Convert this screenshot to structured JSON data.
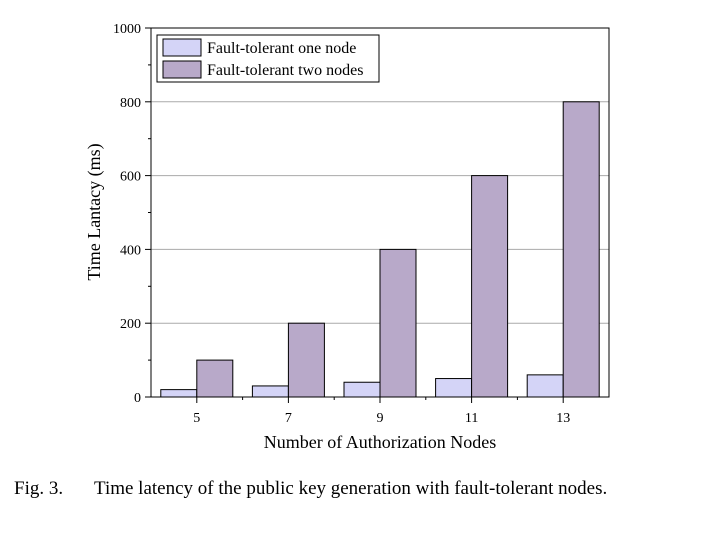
{
  "chart_data": {
    "type": "bar",
    "categories": [
      "5",
      "7",
      "9",
      "11",
      "13"
    ],
    "series": [
      {
        "name": "Fault-tolerant one node",
        "values": [
          20,
          30,
          40,
          50,
          60
        ],
        "color": "#d4d4f7"
      },
      {
        "name": "Fault-tolerant two nodes",
        "values": [
          100,
          200,
          400,
          600,
          800
        ],
        "color": "#b8a9c9"
      }
    ],
    "xlabel": "Number of Authorization Nodes",
    "ylabel": "Time Lantacy (ms)",
    "ylim": [
      0,
      1000
    ],
    "yticks": [
      0,
      200,
      400,
      600,
      800,
      1000
    ],
    "grid": true,
    "legend_position": "top-left"
  },
  "caption": {
    "number": "Fig. 3.",
    "text": "Time latency of the public key generation with fault-tolerant nodes."
  }
}
